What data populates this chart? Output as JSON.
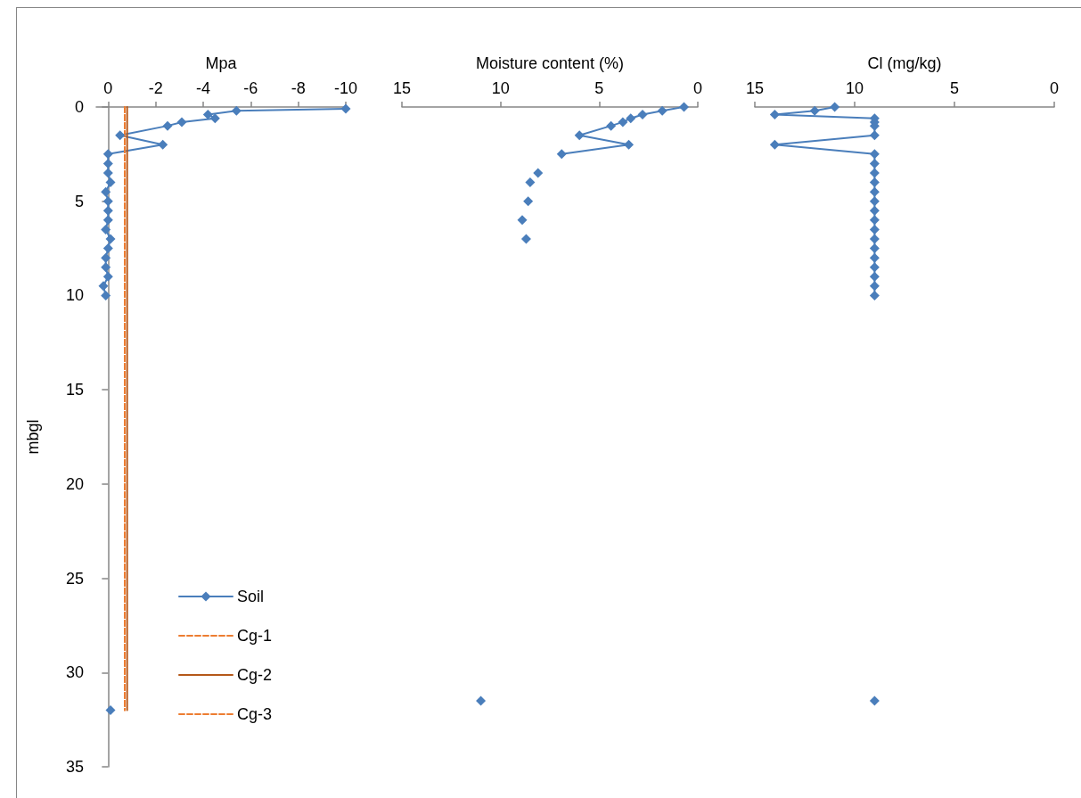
{
  "chart_data": [
    {
      "type": "line",
      "xlabel": "Mpa",
      "ylabel": "mbgl",
      "xlim": [
        0.5,
        -10
      ],
      "xticks": [
        0,
        -2,
        -4,
        -6,
        -8,
        -10
      ],
      "ylim": [
        35,
        0
      ],
      "yticks": [
        0,
        5,
        10,
        15,
        20,
        25,
        30,
        35
      ],
      "grid": false,
      "legend": "bottom",
      "series": [
        {
          "name": "Soil",
          "color": "#4a7ebb",
          "marker": "diamond",
          "line_style": "solid",
          "x": [
            -10,
            -5.4,
            -4.2,
            -4.5,
            -3.1,
            -2.5,
            -0.5,
            -2.3,
            0,
            0,
            0,
            -0.1,
            0.1,
            0,
            0,
            0,
            0.1,
            -0.1,
            0,
            0.1,
            0.1,
            0,
            0.2,
            0.1,
            null,
            -0.1
          ],
          "values": [
            0.1,
            0.2,
            0.4,
            0.6,
            0.8,
            1.0,
            1.5,
            2.0,
            2.5,
            3,
            3.5,
            4,
            4.5,
            5,
            5.5,
            6,
            6.5,
            7,
            7.5,
            8,
            8.5,
            9,
            9.5,
            10,
            null,
            32
          ]
        },
        {
          "name": "Cg-1",
          "color": "#ed7d31",
          "marker": "none",
          "line_style": "dashed",
          "x": [
            -0.7,
            -0.7
          ],
          "values": [
            0,
            32
          ]
        },
        {
          "name": "Cg-2",
          "color": "#b5581a",
          "marker": "none",
          "line_style": "solid",
          "x": [
            -0.8,
            -0.8
          ],
          "values": [
            0,
            32
          ]
        },
        {
          "name": "Cg-3",
          "color": "#ed7d31",
          "marker": "none",
          "line_style": "dashed",
          "x": [
            -0.7,
            -0.7
          ],
          "values": [
            0,
            32
          ]
        }
      ]
    },
    {
      "type": "line",
      "xlabel": "Moisture content (%)",
      "xlim": [
        15,
        0
      ],
      "xticks": [
        15,
        10,
        5,
        0
      ],
      "ylim": [
        35,
        0
      ],
      "grid": false,
      "tick_labels": "x",
      "series": [
        {
          "color": "#4a7ebb",
          "marker": "diamond",
          "line_style": "solid",
          "x": [
            0.7,
            1.8,
            2.8,
            3.4,
            3.8,
            4.4,
            6.0,
            3.5,
            6.9,
            null,
            8.1,
            null,
            8.5,
            null,
            8.6,
            null,
            8.9,
            null,
            8.7,
            null,
            11.0
          ],
          "values": [
            0,
            0.2,
            0.4,
            0.6,
            0.8,
            1.0,
            1.5,
            2.0,
            2.5,
            null,
            3.5,
            null,
            4,
            null,
            5,
            null,
            6,
            null,
            7,
            null,
            31.5
          ]
        }
      ]
    },
    {
      "type": "line",
      "xlabel": "Cl (mg/kg)",
      "xlim": [
        15,
        0
      ],
      "xticks": [
        15,
        10,
        5,
        0
      ],
      "ylim": [
        35,
        0
      ],
      "grid": false,
      "tick_labels": "x",
      "series": [
        {
          "color": "#4a7ebb",
          "marker": "diamond",
          "line_style": "solid",
          "x": [
            11,
            12,
            14,
            9,
            9,
            9,
            9,
            14,
            9,
            9,
            9,
            9,
            9,
            9,
            9,
            9,
            9,
            9,
            9,
            9,
            9,
            9,
            9,
            9,
            null,
            9
          ],
          "values": [
            0,
            0.2,
            0.4,
            0.6,
            0.8,
            1.0,
            1.5,
            2.0,
            2.5,
            3,
            3.5,
            4,
            4.5,
            5,
            5.5,
            6,
            6.5,
            7,
            7.5,
            8,
            8.5,
            9,
            9.5,
            10,
            null,
            31.5
          ]
        }
      ]
    }
  ]
}
